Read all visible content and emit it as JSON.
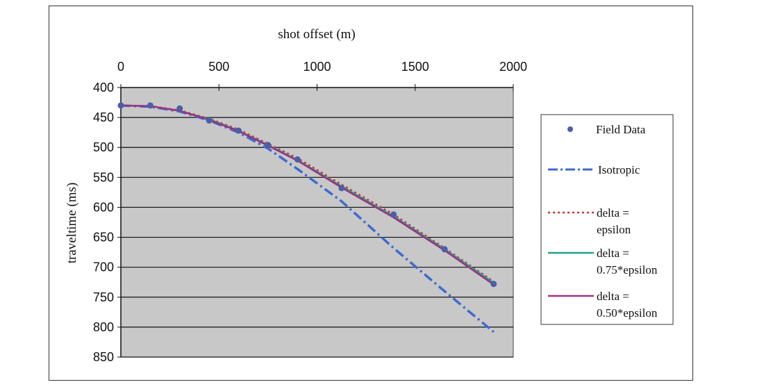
{
  "chart_data": {
    "type": "scatter",
    "xlabel": "shot offset (m)",
    "ylabel": "traveltime (ms)",
    "xlim": [
      0,
      2000
    ],
    "ylim": [
      400,
      850
    ],
    "y_reversed": true,
    "x_axis_position": "top",
    "x_ticks": [
      0,
      500,
      1000,
      1500,
      2000
    ],
    "y_ticks": [
      400,
      450,
      500,
      550,
      600,
      650,
      700,
      750,
      800,
      850
    ],
    "grid": "horizontal",
    "plot_background": "#c8c8c8",
    "legend_position": "right",
    "series": [
      {
        "name": "Field Data",
        "style": "markers",
        "color": "#4a5fa8",
        "x": [
          0,
          150,
          300,
          450,
          600,
          750,
          900,
          1125,
          1390,
          1650,
          1900
        ],
        "y": [
          430,
          430,
          435,
          455,
          472,
          496,
          520,
          568,
          612,
          670,
          728
        ]
      },
      {
        "name": "Isotropic",
        "style": "dash-dot",
        "color": "#3e6ad0",
        "x": [
          0,
          150,
          300,
          450,
          600,
          750,
          900,
          1125,
          1390,
          1650,
          1900
        ],
        "y": [
          430,
          432,
          440,
          455,
          475,
          502,
          536,
          590,
          668,
          740,
          808
        ]
      },
      {
        "name": "delta = epsilon",
        "style": "dotted",
        "color": "#d03030",
        "x": [
          0,
          150,
          300,
          450,
          600,
          750,
          900,
          1125,
          1390,
          1650,
          1900
        ],
        "y": [
          430,
          431,
          438,
          452,
          470,
          494,
          518,
          562,
          612,
          668,
          724
        ]
      },
      {
        "name": "delta = 0.75*epsilon",
        "style": "solid",
        "color": "#20a090",
        "x": [
          0,
          150,
          300,
          450,
          600,
          750,
          900,
          1125,
          1390,
          1650,
          1900
        ],
        "y": [
          430,
          431,
          439,
          453,
          472,
          496,
          521,
          565,
          615,
          670,
          726
        ]
      },
      {
        "name": "delta = 0.50*epsilon",
        "style": "solid",
        "color": "#a03080",
        "x": [
          0,
          150,
          300,
          450,
          600,
          750,
          900,
          1125,
          1390,
          1650,
          1900
        ],
        "y": [
          430,
          431,
          439,
          454,
          473,
          497,
          522,
          567,
          617,
          672,
          729
        ]
      }
    ]
  },
  "legend": {
    "field_data": "Field Data",
    "isotropic": "Isotropic",
    "delta_eps_line1": "delta =",
    "delta_eps_line2": "epsilon",
    "delta_075_line1": "delta =",
    "delta_075_line2": "0.75*epsilon",
    "delta_050_line1": "delta =",
    "delta_050_line2": "0.50*epsilon"
  }
}
